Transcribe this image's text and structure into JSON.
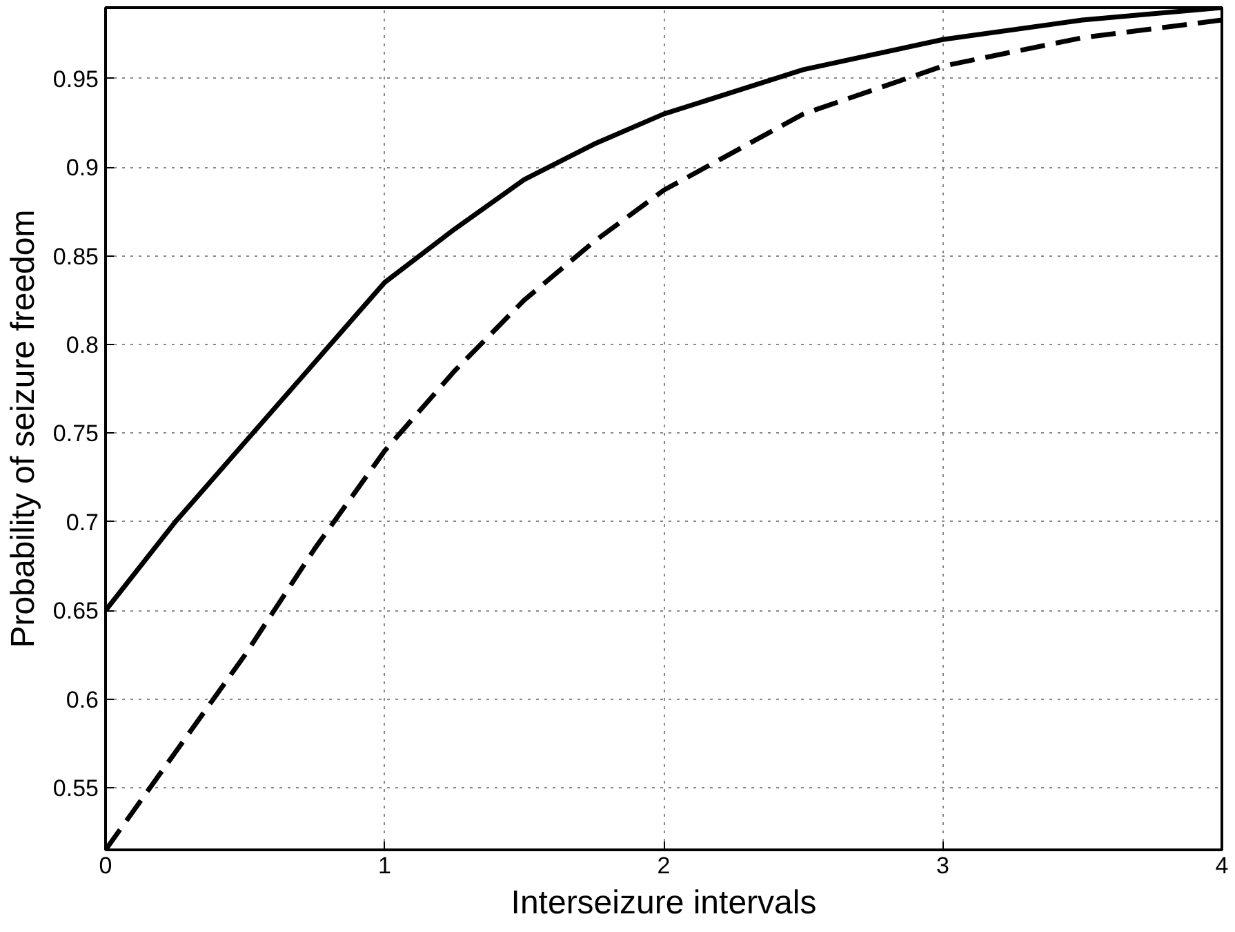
{
  "chart_data": {
    "type": "line",
    "xlabel": "Interseizure intervals",
    "ylabel": "Probability of seizure freedom",
    "xlim": [
      0,
      4
    ],
    "ylim": [
      0.515,
      0.99
    ],
    "xticks": [
      0,
      1,
      2,
      3,
      4
    ],
    "yticks": [
      0.55,
      0.6,
      0.65,
      0.7,
      0.75,
      0.8,
      0.85,
      0.9,
      0.95
    ],
    "grid": true,
    "x": [
      0,
      0.25,
      0.5,
      0.75,
      1,
      1.25,
      1.5,
      1.75,
      2,
      2.5,
      3,
      3.5,
      4
    ],
    "series": [
      {
        "color": "#000000",
        "line_style": "solid",
        "values": [
          0.65,
          0.7,
          0.745,
          0.79,
          0.835,
          0.865,
          0.893,
          0.913,
          0.93,
          0.955,
          0.972,
          0.983,
          0.99
        ]
      },
      {
        "color": "#000000",
        "line_style": "dashed",
        "values": [
          0.515,
          0.57,
          0.625,
          0.685,
          0.74,
          0.785,
          0.825,
          0.858,
          0.887,
          0.93,
          0.957,
          0.973,
          0.983
        ]
      }
    ]
  }
}
